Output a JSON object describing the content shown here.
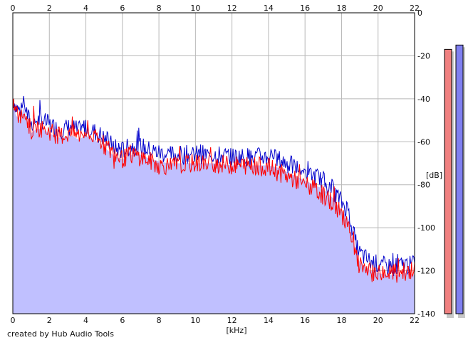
{
  "chart_data": {
    "type": "area",
    "xlabel": "[kHz]",
    "ylabel": "[dB]",
    "xlim": [
      0,
      22
    ],
    "ylim": [
      -140,
      0
    ],
    "x_ticks": [
      0,
      2,
      4,
      6,
      8,
      10,
      12,
      14,
      16,
      18,
      20,
      22
    ],
    "y_ticks": [
      0,
      -20,
      -40,
      -60,
      -80,
      -100,
      -120,
      -140
    ],
    "grid": true,
    "series": [
      {
        "color": "#0000cc",
        "fill": "#c0c0ff",
        "x": [
          0,
          0.2,
          0.4,
          0.6,
          0.8,
          1.0,
          1.3,
          1.6,
          2.0,
          2.4,
          2.8,
          3.2,
          3.6,
          4.0,
          4.4,
          4.8,
          5.2,
          5.6,
          6.0,
          6.5,
          7.0,
          7.5,
          8.0,
          8.5,
          9.0,
          10.0,
          11.0,
          12.0,
          13.0,
          14.0,
          14.5,
          15.0,
          15.5,
          16.0,
          16.5,
          17.0,
          17.5,
          18.0,
          18.4,
          18.6,
          18.8,
          19.0,
          19.3,
          19.6,
          20.0,
          20.5,
          21.0,
          21.5,
          22.0
        ],
        "values": [
          -40,
          -44,
          -46,
          -40,
          -48,
          -52,
          -50,
          -50,
          -52,
          -54,
          -54,
          -53,
          -55,
          -53,
          -55,
          -57,
          -60,
          -63,
          -64,
          -62,
          -62,
          -64,
          -65,
          -66,
          -66,
          -66,
          -66,
          -67,
          -67,
          -67,
          -68,
          -70,
          -72,
          -74,
          -76,
          -78,
          -82,
          -88,
          -92,
          -100,
          -108,
          -112,
          -114,
          -116,
          -117,
          -118,
          -118,
          -117,
          -118
        ]
      },
      {
        "color": "#ff0000",
        "x": [
          0,
          0.2,
          0.4,
          0.6,
          0.8,
          1.0,
          1.3,
          1.6,
          2.0,
          2.4,
          2.8,
          3.2,
          3.6,
          4.0,
          4.4,
          4.8,
          5.2,
          5.6,
          6.0,
          6.5,
          7.0,
          7.5,
          8.0,
          8.5,
          9.0,
          10.0,
          11.0,
          12.0,
          13.0,
          14.0,
          14.5,
          15.0,
          15.5,
          16.0,
          16.5,
          17.0,
          17.5,
          18.0,
          18.4,
          18.6,
          18.8,
          19.0,
          19.3,
          19.6,
          20.0,
          20.5,
          21.0,
          21.5,
          22.0
        ],
        "values": [
          -42,
          -46,
          -50,
          -45,
          -50,
          -55,
          -53,
          -54,
          -55,
          -57,
          -57,
          -56,
          -57,
          -56,
          -58,
          -60,
          -63,
          -66,
          -68,
          -66,
          -67,
          -69,
          -71,
          -71,
          -71,
          -70,
          -70,
          -71,
          -71,
          -72,
          -74,
          -76,
          -78,
          -80,
          -82,
          -85,
          -88,
          -94,
          -98,
          -106,
          -114,
          -118,
          -120,
          -121,
          -121,
          -121,
          -121,
          -120,
          -120
        ]
      }
    ],
    "meters": [
      {
        "color": "#f08080",
        "value_db": -17
      },
      {
        "color": "#8080f0",
        "value_db": -15
      }
    ]
  },
  "axes": {
    "x_tick_labels": [
      "0",
      "2",
      "4",
      "6",
      "8",
      "10",
      "12",
      "14",
      "16",
      "18",
      "20",
      "22"
    ],
    "y_tick_labels": [
      "0",
      "-20",
      "-40",
      "-60",
      "-80",
      "-100",
      "-120",
      "-140"
    ],
    "xlabel": "[kHz]",
    "ylabel": "[dB]"
  },
  "credit": "created by Hub Audio Tools"
}
